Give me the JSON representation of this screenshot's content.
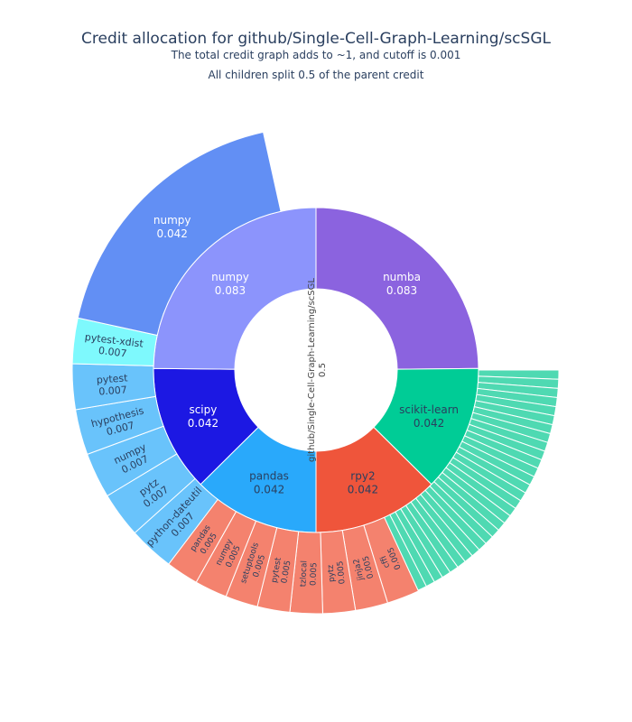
{
  "chart_data": {
    "type": "sunburst",
    "title": "Credit allocation for github/Single-Cell-Graph-Learning/scSGL",
    "subtitle": "The total credit graph adds to ~1, and cutoff is 0.001",
    "note": "All children split 0.5 of the parent credit",
    "root": {
      "label": "github/Single-Cell-Graph-Learning/scSGL",
      "value": "0.5",
      "color": "#ffffff"
    },
    "rings": [
      [
        {
          "label": "numba",
          "value": 0.083,
          "value_label": "0.083",
          "color": "#8b63df",
          "text_color": "#ffffff"
        },
        {
          "label": "scikit-learn",
          "value": 0.042,
          "value_label": "0.042",
          "color": "#00cc96",
          "text_color": "#2a3f5f"
        },
        {
          "label": "rpy2",
          "value": 0.042,
          "value_label": "0.042",
          "color": "#ef553b",
          "text_color": "#2a3f5f"
        },
        {
          "label": "pandas",
          "value": 0.042,
          "value_label": "0.042",
          "color": "#29a9fb",
          "text_color": "#2a3f5f"
        },
        {
          "label": "scipy",
          "value": 0.042,
          "value_label": "0.042",
          "color": "#1c18e3",
          "text_color": "#ffffff"
        },
        {
          "label": "numpy",
          "value": 0.083,
          "value_label": "0.083",
          "color": "#8c94fc",
          "text_color": "#ffffff"
        }
      ],
      [
        {
          "label": "",
          "value": 0.042,
          "color": "#4fd9b2",
          "parent": "scikit-learn",
          "slices": 30
        },
        {
          "label": "cffi",
          "value_label": "0.005",
          "value": 0.005,
          "color": "#f4826e",
          "parent": "rpy2"
        },
        {
          "label": "jinja2",
          "value_label": "0.005",
          "value": 0.005,
          "color": "#f4826e",
          "parent": "rpy2"
        },
        {
          "label": "pytz",
          "value_label": "0.005",
          "value": 0.005,
          "color": "#f4826e",
          "parent": "rpy2"
        },
        {
          "label": "tzlocal",
          "value_label": "0.005",
          "value": 0.005,
          "color": "#f4826e",
          "parent": "rpy2"
        },
        {
          "label": "pytest",
          "value_label": "0.005",
          "value": 0.005,
          "color": "#f4826e",
          "parent": "rpy2"
        },
        {
          "label": "setuptools",
          "value_label": "0.005",
          "value": 0.005,
          "color": "#f4826e",
          "parent": "rpy2"
        },
        {
          "label": "numpy",
          "value_label": "0.005",
          "value": 0.005,
          "color": "#f4826e",
          "parent": "rpy2"
        },
        {
          "label": "pandas",
          "value_label": "0.005",
          "value": 0.005,
          "color": "#f4826e",
          "parent": "rpy2"
        },
        {
          "label": "python-dateutil",
          "value_label": "0.007",
          "value": 0.007,
          "color": "#69c3fb",
          "parent": "pandas"
        },
        {
          "label": "pytz",
          "value_label": "0.007",
          "value": 0.007,
          "color": "#69c3fb",
          "parent": "pandas"
        },
        {
          "label": "numpy",
          "value_label": "0.007",
          "value": 0.007,
          "color": "#69c3fb",
          "parent": "pandas"
        },
        {
          "label": "hypothesis",
          "value_label": "0.007",
          "value": 0.007,
          "color": "#69c3fb",
          "parent": "pandas"
        },
        {
          "label": "pytest",
          "value_label": "0.007",
          "value": 0.007,
          "color": "#69c3fb",
          "parent": "pandas"
        },
        {
          "label": "pytest-xdist",
          "value_label": "0.007",
          "value": 0.007,
          "color": "#7ef9fd",
          "parent": "scipy"
        },
        {
          "label": "numpy",
          "value_label": "0.042",
          "value": 0.042,
          "color": "#628ff4",
          "parent": "scipy"
        }
      ]
    ]
  }
}
